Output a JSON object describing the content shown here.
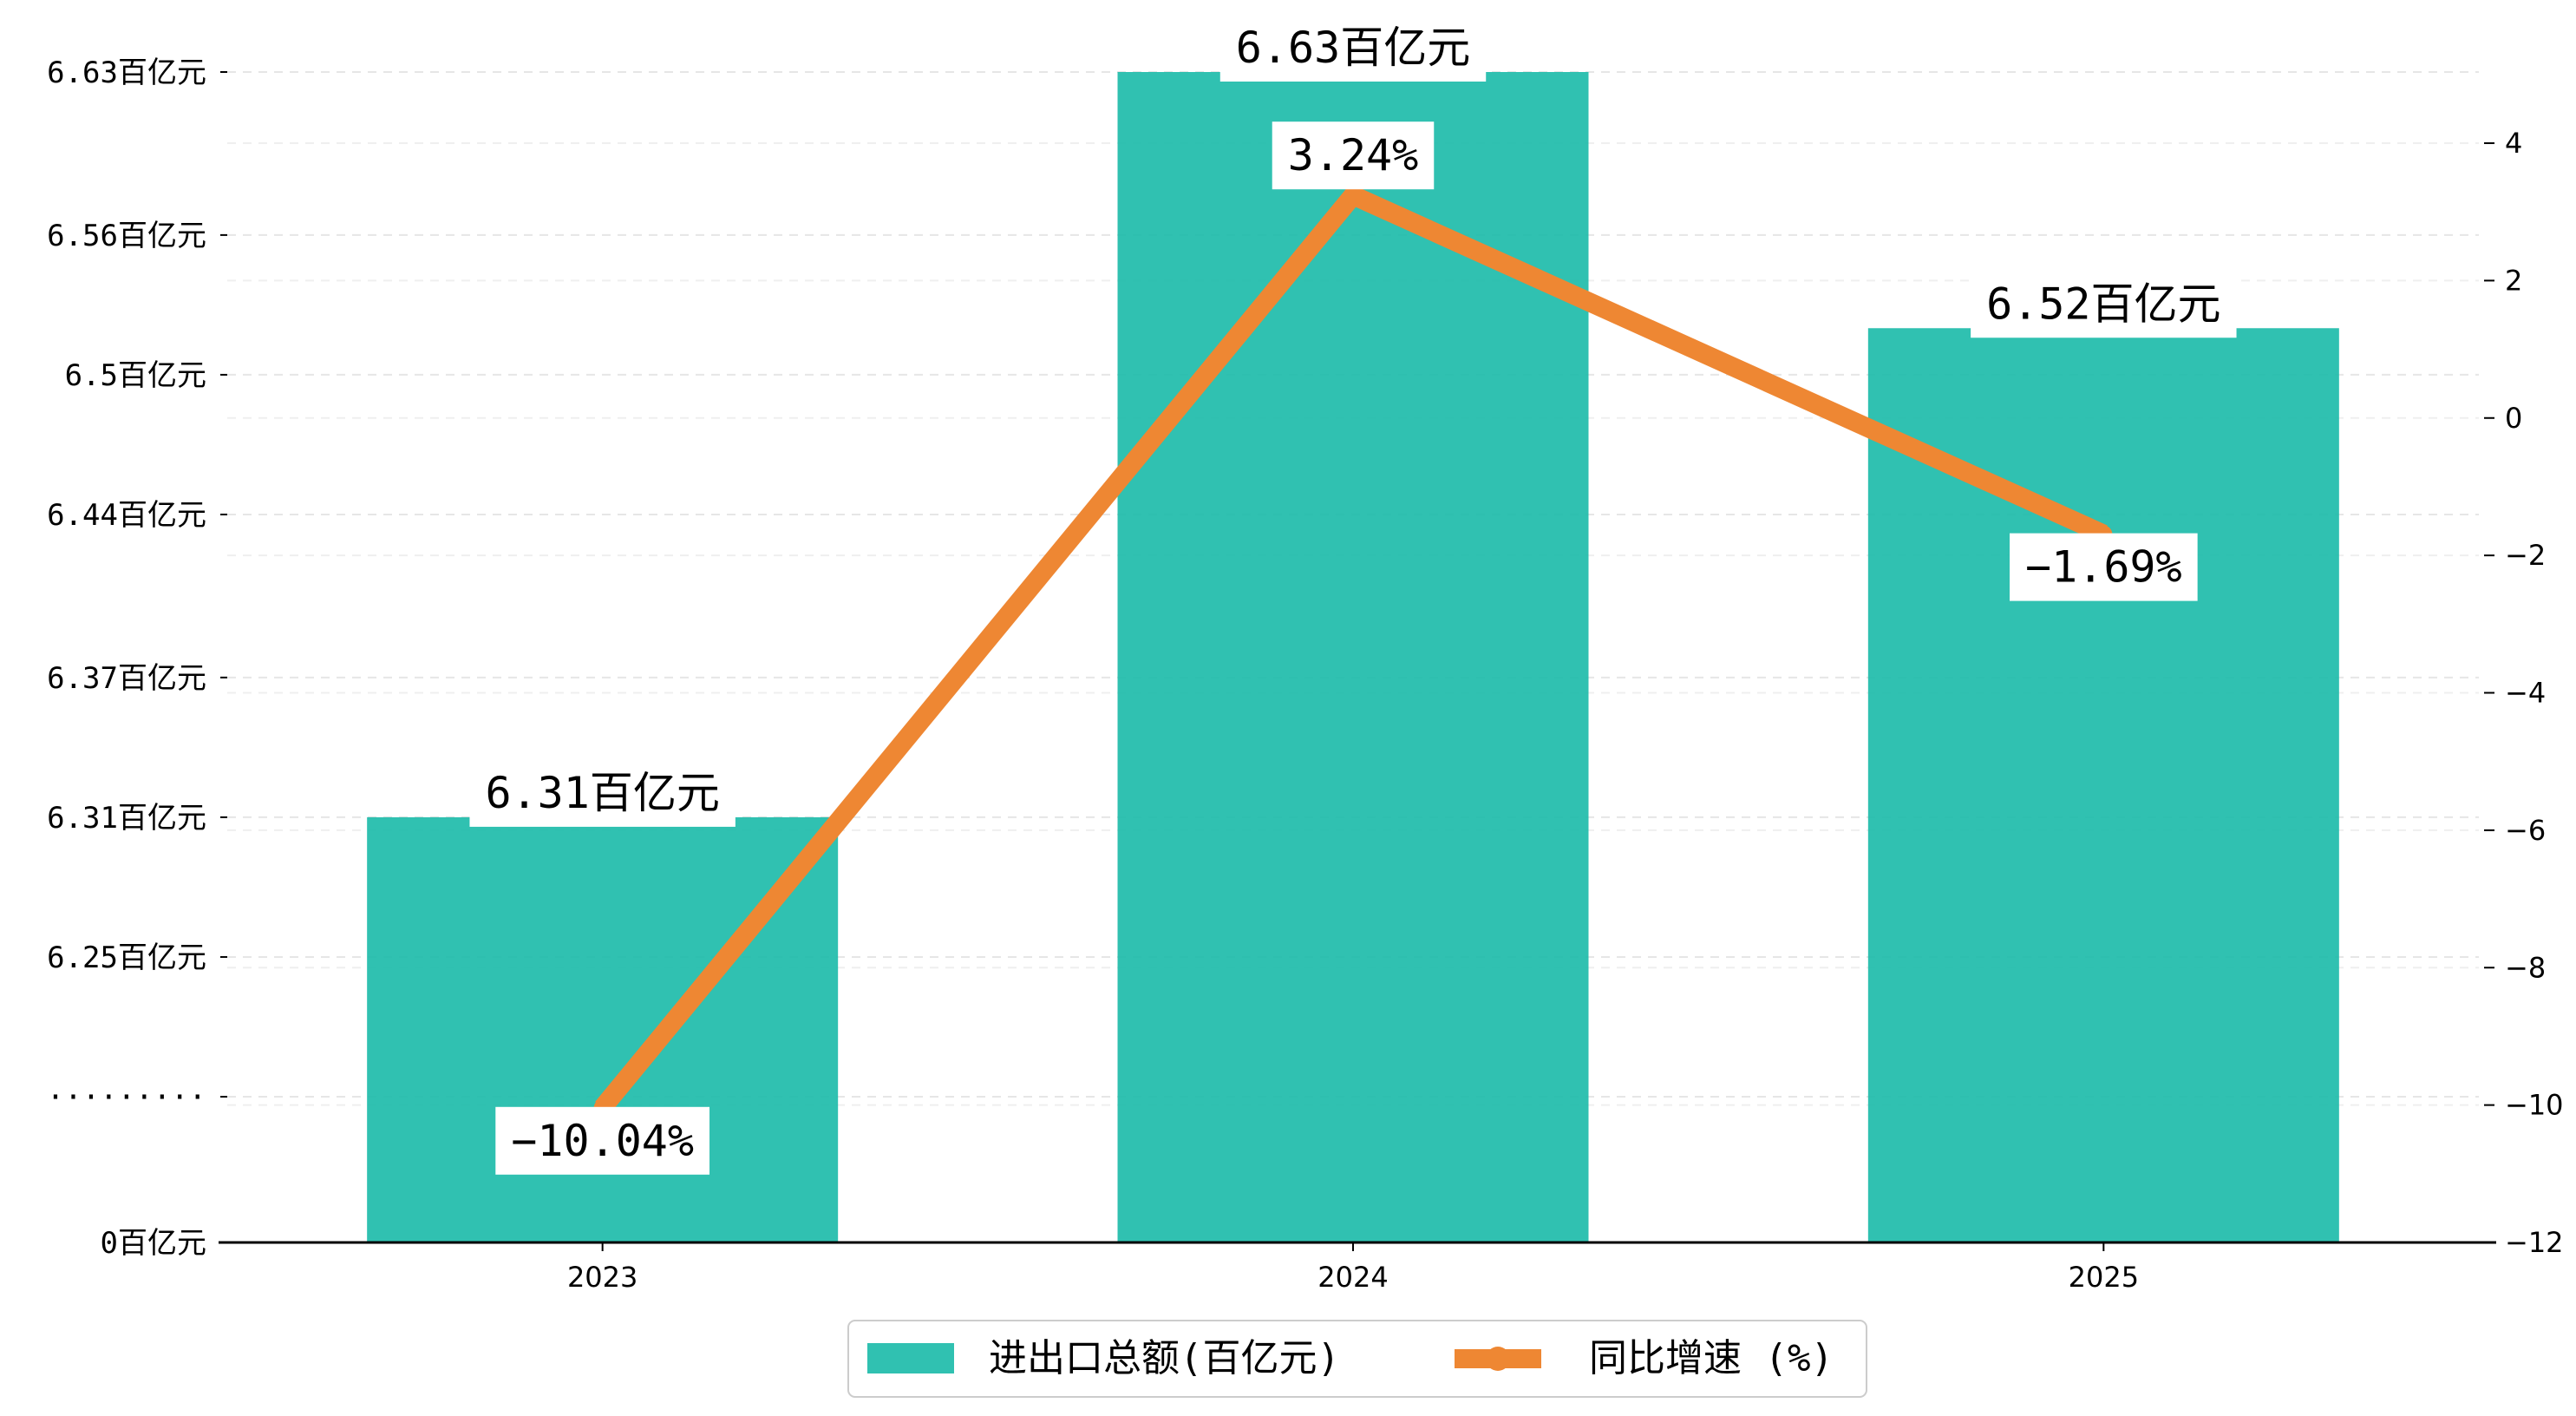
{
  "chart_data": {
    "type": "bar+line",
    "categories": [
      "2023",
      "2024",
      "2025"
    ],
    "series": [
      {
        "name": "进出口总额(百亿元)",
        "type": "bar",
        "axis": "left",
        "values": [
          6.31,
          6.63,
          6.52
        ],
        "labels": [
          "6.31百亿元",
          "6.63百亿元",
          "6.52百亿元"
        ],
        "color": "#1ABAA8"
      },
      {
        "name": "同比增速 (%)",
        "type": "line",
        "axis": "right",
        "values": [
          -10.04,
          3.24,
          -1.69
        ],
        "labels": [
          "-10.04%",
          "3.24%",
          "-1.69%"
        ],
        "color": "#EE8733"
      }
    ],
    "left_axis": {
      "ticks": [
        {
          "value": 0,
          "label": "0百亿元"
        },
        {
          "value": 6.19,
          "label": "·········"
        },
        {
          "value": 6.25,
          "label": "6.25百亿元"
        },
        {
          "value": 6.31,
          "label": "6.31百亿元"
        },
        {
          "value": 6.37,
          "label": "6.37百亿元"
        },
        {
          "value": 6.44,
          "label": "6.44百亿元"
        },
        {
          "value": 6.5,
          "label": "6.5百亿元"
        },
        {
          "value": 6.56,
          "label": "6.56百亿元"
        },
        {
          "value": 6.63,
          "label": "6.63百亿元"
        }
      ],
      "axis_break": true
    },
    "right_axis": {
      "ylim": [
        -12,
        5.2
      ],
      "ticks": [
        -12,
        -10,
        -8,
        -6,
        -4,
        -2,
        0,
        2,
        4
      ]
    },
    "grid": true,
    "legend_position": "bottom-center"
  }
}
